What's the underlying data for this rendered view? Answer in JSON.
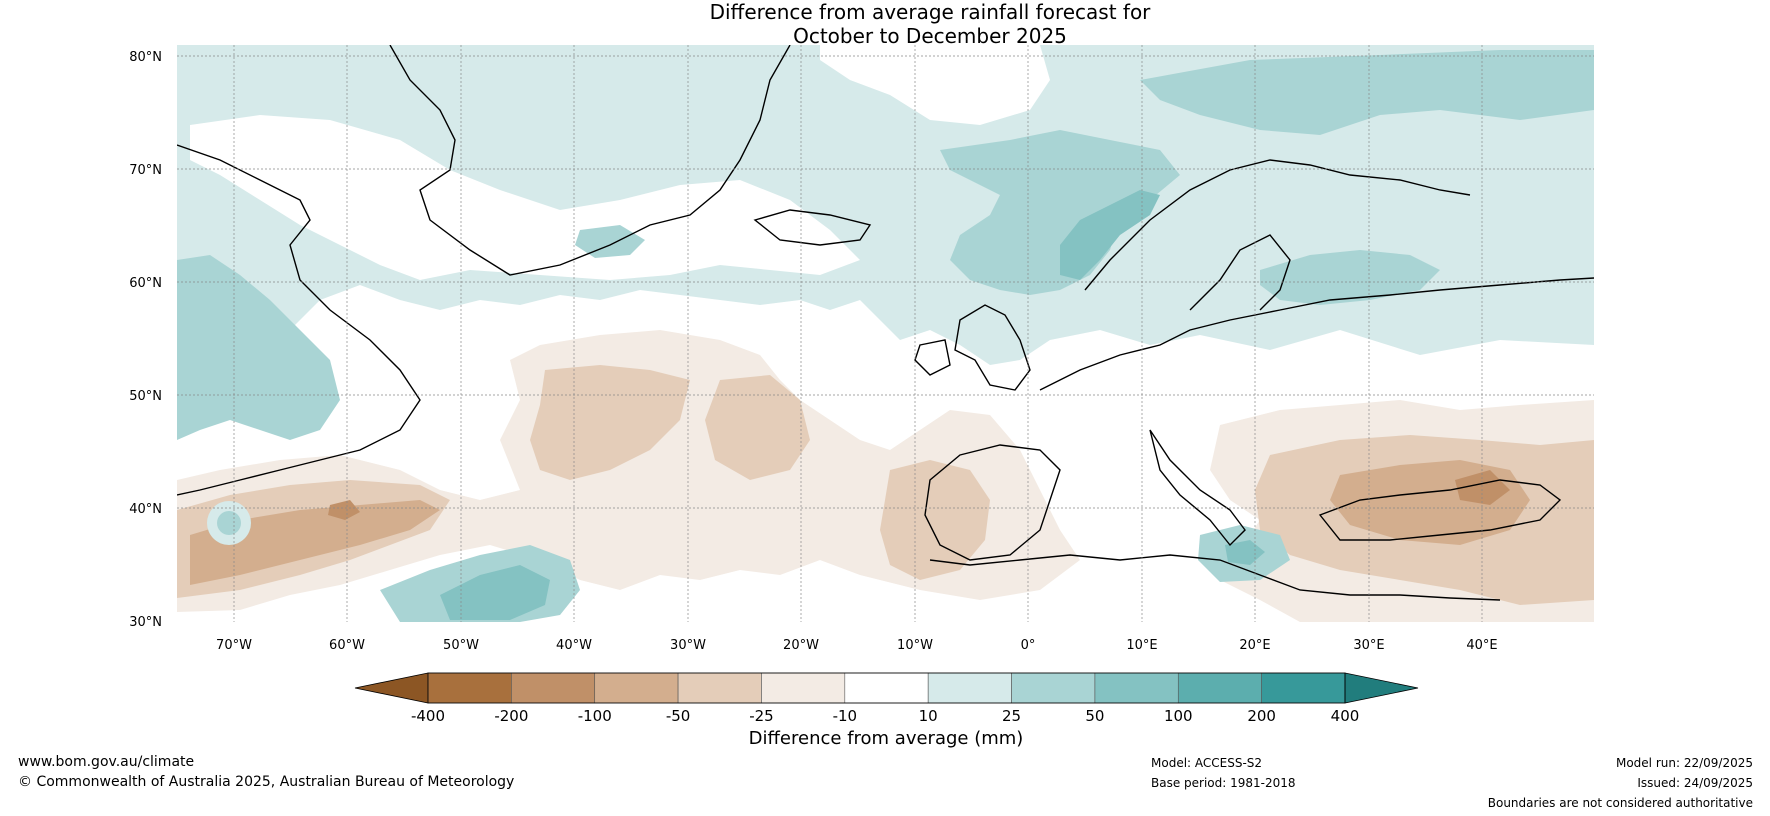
{
  "title": {
    "line1": "Difference from average rainfall forecast for",
    "line2": "October to December 2025"
  },
  "map": {
    "lat_labels": [
      "80°N",
      "70°N",
      "60°N",
      "50°N",
      "40°N",
      "30°N"
    ],
    "lon_labels": [
      "70°W",
      "60°W",
      "50°W",
      "40°W",
      "30°W",
      "20°W",
      "10°W",
      "0°",
      "10°E",
      "20°E",
      "30°E",
      "40°E"
    ]
  },
  "colorbar": {
    "label": "Difference from average (mm)",
    "ticks": [
      "-400",
      "-200",
      "-100",
      "-50",
      "-25",
      "-10",
      "10",
      "25",
      "50",
      "100",
      "200",
      "400"
    ],
    "colors": {
      "under": "#8c5624",
      "bins": [
        "#a8703d",
        "#c09068",
        "#d3ae8e",
        "#e4cdb9",
        "#f3ebe4",
        "#ffffff",
        "#d6eaea",
        "#a9d4d4",
        "#84c2c2",
        "#5caeae",
        "#37999a"
      ],
      "over": "#217d7d"
    }
  },
  "footer": {
    "url": "www.bom.gov.au/climate",
    "copyright": "© Commonwealth of Australia 2025, Australian Bureau of Meteorology",
    "model": "Model: ACCESS-S2",
    "base_period": "Base period: 1981-2018",
    "model_run": "Model run: 22/09/2025",
    "issued": "Issued: 24/09/2025",
    "boundaries": "Boundaries are not considered authoritative"
  }
}
